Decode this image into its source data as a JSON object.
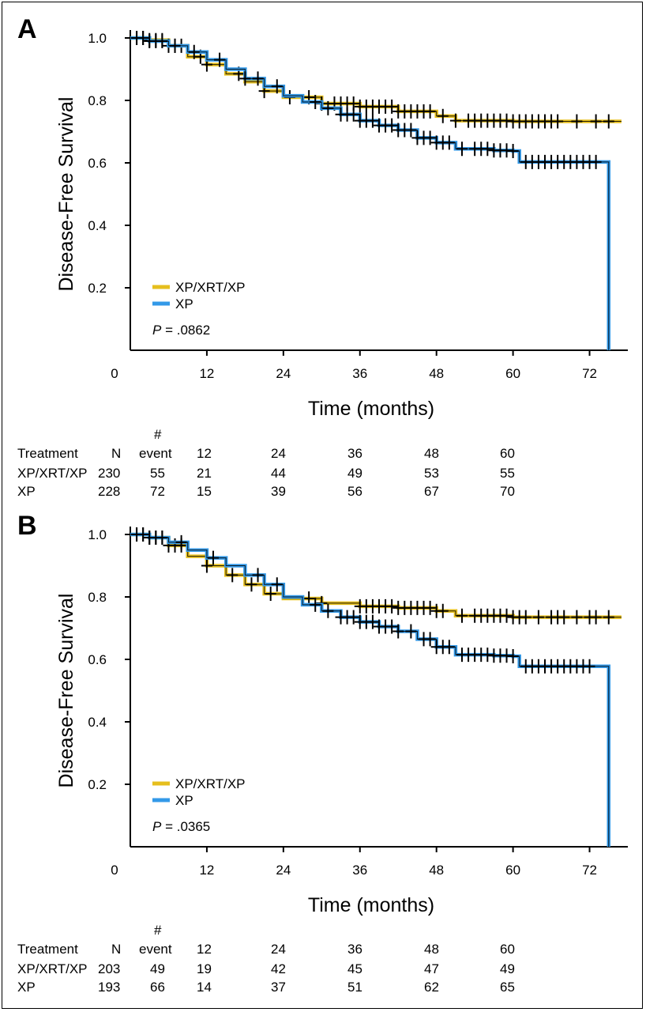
{
  "chart_data": [
    {
      "type": "line",
      "panel_label": "A",
      "xlabel": "Time (months)",
      "ylabel": "Disease-Free Survival",
      "xlim": [
        0,
        78
      ],
      "ylim": [
        0,
        1.0
      ],
      "x_ticks": [
        "0",
        "12",
        "24",
        "36",
        "48",
        "60",
        "72"
      ],
      "y_ticks": [
        "0.2",
        "0.4",
        "0.6",
        "0.8",
        "1.0"
      ],
      "legend_position": "bottom-left",
      "p_label": "P",
      "p_value": " = .0862",
      "colors": {
        "XP/XRT/XP": "#e6bf1e",
        "XP": "#3399e8"
      },
      "series": [
        {
          "name": "XP/XRT/XP",
          "points": [
            [
              0,
              1.0
            ],
            [
              3,
              0.993
            ],
            [
              6,
              0.975
            ],
            [
              9,
              0.94
            ],
            [
              12,
              0.915
            ],
            [
              15,
              0.885
            ],
            [
              18,
              0.86
            ],
            [
              21,
              0.83
            ],
            [
              24,
              0.81
            ],
            [
              30,
              0.79
            ],
            [
              36,
              0.78
            ],
            [
              42,
              0.765
            ],
            [
              48,
              0.75
            ],
            [
              51,
              0.735
            ],
            [
              60,
              0.733
            ],
            [
              77,
              0.733
            ]
          ],
          "censored": [
            1,
            2,
            3,
            4,
            5,
            6,
            7,
            8,
            11,
            12,
            17,
            21,
            25,
            28,
            30,
            32,
            33,
            34,
            35,
            36,
            37,
            38,
            39,
            40,
            41,
            42,
            43,
            44,
            45,
            46,
            47,
            49,
            51,
            53,
            54,
            55,
            56,
            57,
            58,
            59,
            60,
            61,
            62,
            63,
            64,
            65,
            66,
            67,
            70,
            73,
            75
          ]
        },
        {
          "name": "XP",
          "points": [
            [
              0,
              1.0
            ],
            [
              3,
              0.99
            ],
            [
              6,
              0.975
            ],
            [
              9,
              0.955
            ],
            [
              12,
              0.93
            ],
            [
              15,
              0.9
            ],
            [
              18,
              0.87
            ],
            [
              21,
              0.845
            ],
            [
              24,
              0.815
            ],
            [
              27,
              0.795
            ],
            [
              30,
              0.775
            ],
            [
              33,
              0.755
            ],
            [
              36,
              0.735
            ],
            [
              39,
              0.72
            ],
            [
              42,
              0.705
            ],
            [
              45,
              0.68
            ],
            [
              48,
              0.665
            ],
            [
              51,
              0.645
            ],
            [
              57,
              0.64
            ],
            [
              60,
              0.638
            ],
            [
              61,
              0.603
            ],
            [
              75,
              0.603
            ],
            [
              75,
              0.0
            ]
          ],
          "censored": [
            1,
            2,
            3,
            4,
            5,
            7,
            10,
            14,
            18,
            20,
            23,
            29,
            31,
            33,
            34,
            35,
            36,
            37,
            38,
            39,
            40,
            41,
            42,
            43,
            44,
            45,
            46,
            47,
            48,
            49,
            50,
            52,
            54,
            55,
            56,
            57,
            58,
            59,
            60,
            62,
            63,
            64,
            65,
            66,
            67,
            68,
            69,
            70,
            71,
            72,
            73
          ]
        }
      ],
      "risk_table": {
        "hash_label": "#",
        "headers": [
          "Treatment",
          "N",
          "event",
          "12",
          "24",
          "36",
          "48",
          "60"
        ],
        "rows": [
          [
            "XP/XRT/XP",
            "230",
            "55",
            "21",
            "44",
            "49",
            "53",
            "55"
          ],
          [
            "XP",
            "228",
            "72",
            "15",
            "39",
            "56",
            "67",
            "70"
          ]
        ]
      }
    },
    {
      "type": "line",
      "panel_label": "B",
      "xlabel": "Time (months)",
      "ylabel": "Disease-Free Survival",
      "xlim": [
        0,
        78
      ],
      "ylim": [
        0,
        1.0
      ],
      "x_ticks": [
        "0",
        "12",
        "24",
        "36",
        "48",
        "60",
        "72"
      ],
      "y_ticks": [
        "0.2",
        "0.4",
        "0.6",
        "0.8",
        "1.0"
      ],
      "legend_position": "bottom-left",
      "p_label": "P",
      "p_value": " = .0365",
      "colors": {
        "XP/XRT/XP": "#e6bf1e",
        "XP": "#3399e8"
      },
      "series": [
        {
          "name": "XP/XRT/XP",
          "points": [
            [
              0,
              1.0
            ],
            [
              3,
              0.99
            ],
            [
              6,
              0.965
            ],
            [
              9,
              0.93
            ],
            [
              12,
              0.9
            ],
            [
              15,
              0.87
            ],
            [
              18,
              0.84
            ],
            [
              21,
              0.81
            ],
            [
              24,
              0.795
            ],
            [
              30,
              0.78
            ],
            [
              36,
              0.77
            ],
            [
              42,
              0.765
            ],
            [
              48,
              0.755
            ],
            [
              51,
              0.74
            ],
            [
              60,
              0.735
            ],
            [
              77,
              0.735
            ]
          ],
          "censored": [
            1,
            2,
            3,
            4,
            5,
            6,
            7,
            8,
            12,
            16,
            19,
            22,
            28,
            30,
            36,
            37,
            38,
            39,
            40,
            41,
            42,
            43,
            44,
            45,
            46,
            47,
            48,
            49,
            52,
            54,
            55,
            56,
            57,
            58,
            59,
            60,
            61,
            62,
            64,
            66,
            67,
            68,
            70,
            72,
            73,
            75
          ]
        },
        {
          "name": "XP",
          "points": [
            [
              0,
              1.0
            ],
            [
              3,
              0.99
            ],
            [
              6,
              0.975
            ],
            [
              9,
              0.95
            ],
            [
              12,
              0.925
            ],
            [
              15,
              0.9
            ],
            [
              18,
              0.87
            ],
            [
              21,
              0.84
            ],
            [
              24,
              0.8
            ],
            [
              27,
              0.775
            ],
            [
              30,
              0.755
            ],
            [
              33,
              0.735
            ],
            [
              36,
              0.72
            ],
            [
              39,
              0.705
            ],
            [
              42,
              0.69
            ],
            [
              45,
              0.665
            ],
            [
              48,
              0.64
            ],
            [
              51,
              0.615
            ],
            [
              57,
              0.612
            ],
            [
              60,
              0.61
            ],
            [
              61,
              0.578
            ],
            [
              75,
              0.578
            ],
            [
              75,
              0.0
            ]
          ],
          "censored": [
            1,
            2,
            3,
            4,
            5,
            8,
            13,
            20,
            23,
            29,
            31,
            33,
            34,
            35,
            36,
            37,
            38,
            39,
            40,
            41,
            42,
            44,
            46,
            47,
            48,
            49,
            50,
            52,
            53,
            54,
            55,
            56,
            57,
            58,
            59,
            60,
            62,
            63,
            64,
            65,
            66,
            67,
            68,
            69,
            70,
            71,
            72
          ]
        }
      ],
      "risk_table": {
        "hash_label": "#",
        "headers": [
          "Treatment",
          "N",
          "event",
          "12",
          "24",
          "36",
          "48",
          "60"
        ],
        "rows": [
          [
            "XP/XRT/XP",
            "203",
            "49",
            "19",
            "42",
            "45",
            "47",
            "49"
          ],
          [
            "XP",
            "193",
            "66",
            "14",
            "37",
            "51",
            "62",
            "65"
          ]
        ]
      }
    }
  ]
}
